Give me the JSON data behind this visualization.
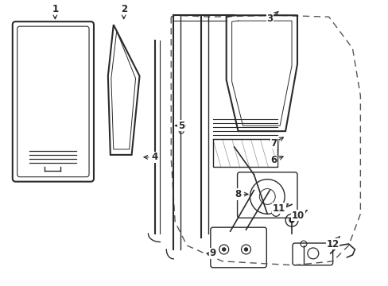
{
  "bg_color": "#ffffff",
  "line_color": "#2a2a2a",
  "dashed_color": "#555555",
  "figsize": [
    4.89,
    3.6
  ],
  "dpi": 100
}
